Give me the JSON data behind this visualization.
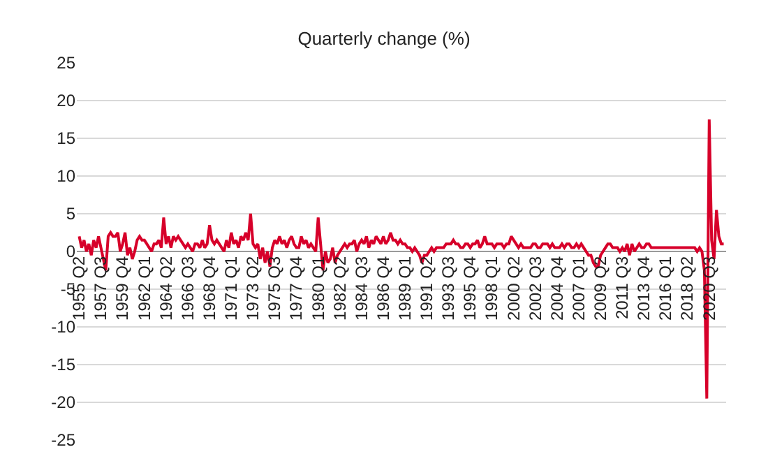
{
  "chart_data": {
    "type": "line",
    "title": "Quarterly change (%)",
    "categories": [
      "1955 Q2",
      null,
      null,
      null,
      null,
      null,
      null,
      null,
      null,
      "1957 Q3",
      null,
      null,
      null,
      null,
      null,
      null,
      null,
      null,
      "1959 Q4",
      null,
      null,
      null,
      null,
      null,
      null,
      null,
      null,
      "1962 Q1",
      null,
      null,
      null,
      null,
      null,
      null,
      null,
      null,
      "1964 Q2",
      null,
      null,
      null,
      null,
      null,
      null,
      null,
      null,
      "1966 Q3",
      null,
      null,
      null,
      null,
      null,
      null,
      null,
      null,
      "1968 Q4",
      null,
      null,
      null,
      null,
      null,
      null,
      null,
      null,
      "1971 Q1",
      null,
      null,
      null,
      null,
      null,
      null,
      null,
      null,
      "1973 Q2",
      null,
      null,
      null,
      null,
      null,
      null,
      null,
      null,
      "1975 Q3",
      null,
      null,
      null,
      null,
      null,
      null,
      null,
      null,
      "1977 Q4",
      null,
      null,
      null,
      null,
      null,
      null,
      null,
      null,
      "1980 Q1",
      null,
      null,
      null,
      null,
      null,
      null,
      null,
      null,
      "1982 Q2",
      null,
      null,
      null,
      null,
      null,
      null,
      null,
      null,
      "1984 Q3",
      null,
      null,
      null,
      null,
      null,
      null,
      null,
      null,
      "1986 Q4",
      null,
      null,
      null,
      null,
      null,
      null,
      null,
      null,
      "1989 Q1",
      null,
      null,
      null,
      null,
      null,
      null,
      null,
      null,
      "1991 Q2",
      null,
      null,
      null,
      null,
      null,
      null,
      null,
      null,
      "1993 Q3",
      null,
      null,
      null,
      null,
      null,
      null,
      null,
      null,
      "1995 Q4",
      null,
      null,
      null,
      null,
      null,
      null,
      null,
      null,
      "1998 Q1",
      null,
      null,
      null,
      null,
      null,
      null,
      null,
      null,
      "2000 Q2",
      null,
      null,
      null,
      null,
      null,
      null,
      null,
      null,
      "2002 Q3",
      null,
      null,
      null,
      null,
      null,
      null,
      null,
      null,
      "2004 Q4",
      null,
      null,
      null,
      null,
      null,
      null,
      null,
      null,
      "2007 Q1",
      null,
      null,
      null,
      null,
      null,
      null,
      null,
      null,
      "2009 Q2",
      null,
      null,
      null,
      null,
      null,
      null,
      null,
      null,
      "2011 Q3",
      null,
      null,
      null,
      null,
      null,
      null,
      null,
      null,
      "2013 Q4",
      null,
      null,
      null,
      null,
      null,
      null,
      null,
      null,
      "2016 Q1",
      null,
      null,
      null,
      null,
      null,
      null,
      null,
      null,
      "2018 Q2",
      null,
      null,
      null,
      null,
      null,
      null,
      null,
      null,
      "2020 Q3",
      null,
      null,
      null,
      null,
      null,
      null
    ],
    "series": [
      {
        "color": "#d7002a",
        "values": [
          2,
          0.5,
          1.5,
          0,
          1,
          -0.5,
          1.5,
          0.5,
          2,
          0.5,
          -1,
          -2.5,
          2,
          2.5,
          2,
          2,
          2.5,
          0,
          1,
          2.5,
          -0.5,
          0.5,
          -1,
          0,
          1.5,
          2,
          1.5,
          1.5,
          1,
          0.5,
          0,
          1,
          1,
          1.5,
          0.5,
          4.5,
          1,
          2,
          0.5,
          2,
          1.5,
          2,
          1.5,
          1,
          0.5,
          1,
          0.5,
          0,
          1,
          1,
          0.5,
          1.5,
          0.5,
          1,
          3.5,
          1.5,
          1,
          1.5,
          1,
          0.5,
          0,
          1.5,
          0.5,
          2.5,
          1,
          1.5,
          0.5,
          2,
          1.5,
          2.5,
          1.5,
          5,
          1,
          0.5,
          1,
          -1,
          0.5,
          -1.5,
          0,
          -2,
          0.5,
          1.5,
          1,
          2,
          1,
          1.5,
          0.5,
          1.5,
          2,
          1,
          0.5,
          0.5,
          2,
          1,
          1.5,
          0.5,
          1,
          0.5,
          0,
          4.5,
          1,
          -2.5,
          0,
          -1.5,
          -1,
          0.5,
          -1.5,
          -0.5,
          0,
          0.5,
          1,
          0.5,
          1,
          1,
          1.5,
          0,
          1,
          1.5,
          1,
          2,
          0.5,
          1.5,
          1,
          2,
          1.5,
          1,
          2,
          1,
          1.5,
          2.5,
          1.5,
          1.5,
          1,
          1.5,
          1,
          1,
          0.5,
          0.5,
          0,
          0.5,
          0,
          -0.5,
          -1.5,
          -0.5,
          -0.5,
          0,
          0.5,
          0,
          0.5,
          0.5,
          0.5,
          0.5,
          1,
          1,
          1,
          1.5,
          1,
          1,
          0.5,
          0.5,
          1,
          1,
          0.5,
          1,
          1,
          1.5,
          0.5,
          1,
          2,
          1,
          1,
          1,
          0.5,
          1,
          1,
          1,
          0.5,
          1,
          1,
          2,
          1.5,
          1,
          0.5,
          1,
          0.5,
          0.5,
          0.5,
          0.5,
          1,
          1,
          0.5,
          0.5,
          1,
          1,
          1,
          0.5,
          1,
          0.5,
          0.5,
          0.5,
          1,
          0.5,
          1,
          1,
          0.5,
          0.5,
          1,
          0.5,
          1,
          0.5,
          0,
          -0.5,
          -0.5,
          -1.5,
          -2,
          -2,
          -0.5,
          0,
          0.5,
          1,
          1,
          0.5,
          0.5,
          0.5,
          0,
          0.5,
          0,
          1,
          -0.5,
          1,
          0,
          0.5,
          1,
          0.5,
          0.5,
          1,
          1,
          0.5,
          0.5,
          0.5,
          0.5,
          0.5,
          0.5,
          0.5,
          0.5,
          0.5,
          0.5,
          0.5,
          0.5,
          0.5,
          0.5,
          0.5,
          0.5,
          0.5,
          0.5,
          0.5,
          0,
          0.5,
          0,
          -2.5,
          -19.5,
          17.5,
          1.5,
          -1,
          5.5,
          2,
          1,
          1
        ]
      }
    ],
    "ylim": [
      -25,
      25
    ],
    "yticks": [
      -25,
      -20,
      -15,
      -10,
      -5,
      0,
      5,
      10,
      15,
      20,
      25
    ],
    "grid": "y",
    "legend": false,
    "marker": "none",
    "line_style": "solid"
  }
}
